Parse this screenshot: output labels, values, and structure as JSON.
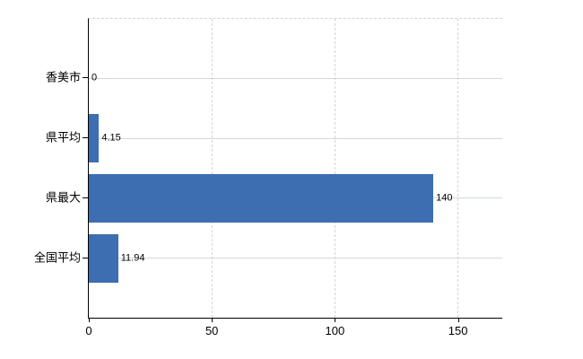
{
  "chart_data": {
    "type": "bar",
    "orientation": "horizontal",
    "title": "",
    "xlabel": "",
    "ylabel": "",
    "categories": [
      "香美市",
      "県平均",
      "県最大",
      "全国平均"
    ],
    "values": [
      0,
      4.15,
      140,
      11.94
    ],
    "value_labels": [
      "0",
      "4.15",
      "140",
      "11.94"
    ],
    "x_ticks": [
      0,
      50,
      100,
      150
    ],
    "x_tick_labels": [
      "0",
      "50",
      "100",
      "150"
    ],
    "xlim": [
      0,
      168
    ],
    "legend": "none",
    "grid": "vertical gridlines dashed at x ticks; horizontal solid gridline at each category center; dashed top plot border"
  },
  "colors": {
    "background": "#ffffff",
    "bar": "#3c6eb1",
    "axis": "#000000",
    "text": "#000000",
    "h_gridline": "#d2dcd2",
    "v_gridline": "#d8d2d8"
  }
}
